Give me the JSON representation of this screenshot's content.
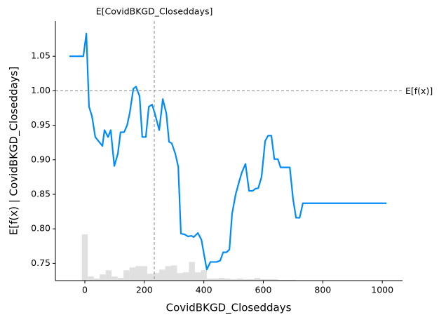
{
  "chart_data": {
    "type": "line",
    "xlabel": "CovidBKGD_Closeddays",
    "ylabel": "E[f(x) | CovidBKGD_Closeddays]",
    "xlim": [
      -99,
      1068
    ],
    "ylim": [
      0.725,
      1.101
    ],
    "xticks": [
      0,
      200,
      400,
      600,
      800,
      1000
    ],
    "yticks": [
      0.75,
      {
        "value": 0.8,
        "label": "0.80"
      },
      0.85,
      {
        "value": 0.9,
        "label": "0.90"
      },
      0.95,
      {
        "value": 1.0,
        "label": "1.00"
      },
      1.05
    ],
    "color": "#008bfb",
    "x": [
      -52,
      -5,
      5,
      14,
      24,
      35,
      59,
      66,
      78,
      87,
      99,
      111,
      120,
      132,
      142,
      151,
      163,
      172,
      184,
      193,
      205,
      215,
      226,
      236,
      250,
      262,
      274,
      283,
      292,
      304,
      314,
      323,
      335,
      347,
      358,
      366,
      380,
      392,
      401,
      410,
      422,
      443,
      455,
      465,
      476,
      486,
      495,
      507,
      519,
      528,
      540,
      552,
      564,
      573,
      583,
      594,
      606,
      616,
      627,
      637,
      649,
      658,
      689,
      700,
      710,
      722,
      733,
      1014
    ],
    "values": [
      1.05,
      1.05,
      1.083,
      0.977,
      0.963,
      0.933,
      0.92,
      0.943,
      0.933,
      0.943,
      0.891,
      0.909,
      0.94,
      0.94,
      0.95,
      0.968,
      1.003,
      1.006,
      0.992,
      0.933,
      0.933,
      0.977,
      0.98,
      0.966,
      0.943,
      0.988,
      0.967,
      0.926,
      0.924,
      0.909,
      0.89,
      0.793,
      0.792,
      0.789,
      0.79,
      0.788,
      0.794,
      0.784,
      0.762,
      0.741,
      0.752,
      0.752,
      0.754,
      0.766,
      0.766,
      0.77,
      0.822,
      0.85,
      0.869,
      0.882,
      0.894,
      0.855,
      0.855,
      0.858,
      0.859,
      0.875,
      0.927,
      0.935,
      0.935,
      0.901,
      0.901,
      0.889,
      0.889,
      0.843,
      0.816,
      0.816,
      0.837,
      0.837
    ],
    "histogram": {
      "color": "#e0e0e0",
      "bins": [
        -10,
        10,
        30,
        50,
        70,
        90,
        110,
        130,
        150,
        170,
        190,
        210,
        230,
        250,
        270,
        290,
        310,
        330,
        350,
        370,
        390,
        410,
        430,
        450,
        470,
        490,
        510,
        530,
        550,
        570,
        590,
        610,
        630,
        650,
        670,
        690,
        710
      ],
      "values": [
        0.792,
        0.731,
        0.728,
        0.734,
        0.74,
        0.731,
        0.729,
        0.74,
        0.744,
        0.746,
        0.746,
        0.735,
        0.736,
        0.741,
        0.746,
        0.747,
        0.736,
        0.737,
        0.752,
        0.737,
        0.74,
        0.728,
        0.728,
        0.729,
        0.728,
        0.727,
        0.728,
        0.727,
        0.727,
        0.729,
        0.727,
        0.727,
        0.727,
        0.726,
        0.726,
        0.726
      ]
    },
    "reference_x": {
      "value": 233.5,
      "label": "E[CovidBKGD_Closeddays]"
    },
    "reference_y": {
      "value": 1.0,
      "label": "E[f(x)]"
    }
  }
}
